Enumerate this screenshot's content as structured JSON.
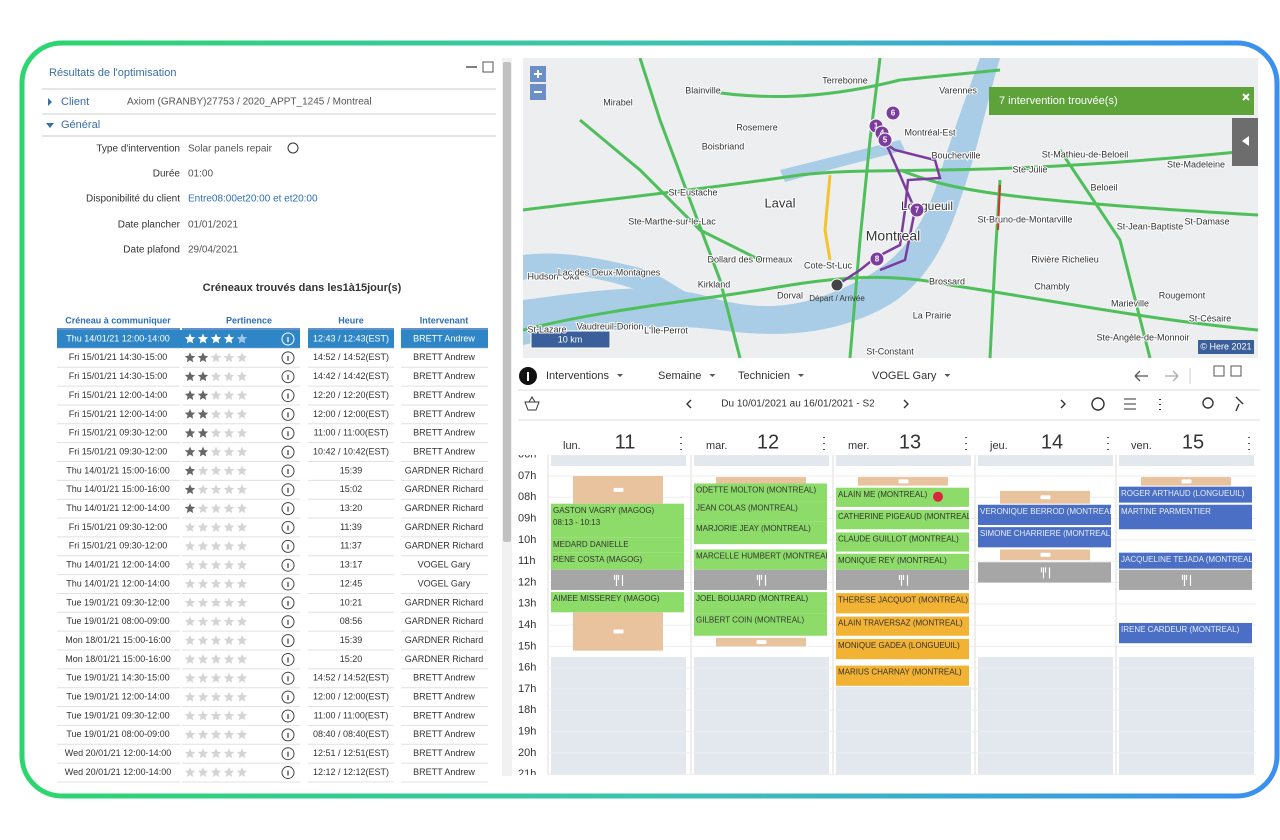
{
  "panel": {
    "title": "Résultats de l'optimisation",
    "client": {
      "label": "Client",
      "value": "Axiom (GRANBY)27753 / 2020_APPT_1245 / Montreal"
    },
    "general": {
      "label": "Général",
      "fields": [
        {
          "label": "Type d'intervention",
          "value": "Solar panels repair"
        },
        {
          "label": "Durée",
          "value": "01:00"
        },
        {
          "label": "Disponibilité du client",
          "value": "Entre08:00et20:00  et  et20:00"
        },
        {
          "label": "Date plancher",
          "value": "01/01/2021"
        },
        {
          "label": "Date plafond",
          "value": "29/04/2021"
        }
      ]
    },
    "slots_title": "Créneaux trouvés dans les1à15jour(s)",
    "table": {
      "headers": [
        "Créneau à communiquer",
        "Pertinence",
        "Heure",
        "Intervenant"
      ],
      "rows": [
        {
          "slot": "Thu 14/01/21 12:00-14:00",
          "rating": 4,
          "hour": "12:43 / 12:43(EST)",
          "tech": "BRETT Andrew"
        },
        {
          "slot": "Fri 15/01/21 14:30-15:00",
          "rating": 2,
          "hour": "14:52 / 14:52(EST)",
          "tech": "BRETT Andrew"
        },
        {
          "slot": "Fri 15/01/21 14:30-15:00",
          "rating": 2,
          "hour": "14:42 / 14:42(EST)",
          "tech": "BRETT Andrew"
        },
        {
          "slot": "Fri 15/01/21 12:00-14:00",
          "rating": 2,
          "hour": "12:20 / 12:20(EST)",
          "tech": "BRETT Andrew"
        },
        {
          "slot": "Fri 15/01/21 12:00-14:00",
          "rating": 2,
          "hour": "12:00 / 12:00(EST)",
          "tech": "BRETT Andrew"
        },
        {
          "slot": "Fri 15/01/21 09:30-12:00",
          "rating": 2,
          "hour": "11:00 / 11:00(EST)",
          "tech": "BRETT Andrew"
        },
        {
          "slot": "Fri 15/01/21 09:30-12:00",
          "rating": 2,
          "hour": "10:42 / 10:42(EST)",
          "tech": "BRETT Andrew"
        },
        {
          "slot": "Thu 14/01/21 15:00-16:00",
          "rating": 1,
          "hour": "15:39",
          "tech": "GARDNER Richard"
        },
        {
          "slot": "Thu 14/01/21 15:00-16:00",
          "rating": 1,
          "hour": "15:02",
          "tech": "GARDNER Richard"
        },
        {
          "slot": "Thu 14/01/21 12:00-14:00",
          "rating": 1,
          "hour": "13:20",
          "tech": "GARDNER Richard"
        },
        {
          "slot": "Fri 15/01/21 09:30-12:00",
          "rating": 0,
          "hour": "11:39",
          "tech": "GARDNER Richard"
        },
        {
          "slot": "Fri 15/01/21 09:30-12:00",
          "rating": 0,
          "hour": "11:37",
          "tech": "GARDNER Richard"
        },
        {
          "slot": "Thu 14/01/21 12:00-14:00",
          "rating": 0,
          "hour": "13:17",
          "tech": "VOGEL Gary"
        },
        {
          "slot": "Thu 14/01/21 12:00-14:00",
          "rating": 0,
          "hour": "12:45",
          "tech": "VOGEL Gary"
        },
        {
          "slot": "Tue 19/01/21 09:30-12:00",
          "rating": 0,
          "hour": "10:21",
          "tech": "GARDNER Richard"
        },
        {
          "slot": "Tue 19/01/21 08:00-09:00",
          "rating": 0,
          "hour": "08:56",
          "tech": "GARDNER Richard"
        },
        {
          "slot": "Mon 18/01/21 15:00-16:00",
          "rating": 0,
          "hour": "15:39",
          "tech": "GARDNER Richard"
        },
        {
          "slot": "Mon 18/01/21 15:00-16:00",
          "rating": 0,
          "hour": "15:20",
          "tech": "GARDNER Richard"
        },
        {
          "slot": "Tue 19/01/21 14:30-15:00",
          "rating": 0,
          "hour": "14:52 / 14:52(EST)",
          "tech": "BRETT Andrew"
        },
        {
          "slot": "Tue 19/01/21 12:00-14:00",
          "rating": 0,
          "hour": "12:00 / 12:00(EST)",
          "tech": "BRETT Andrew"
        },
        {
          "slot": "Tue 19/01/21 09:30-12:00",
          "rating": 0,
          "hour": "11:00 / 11:00(EST)",
          "tech": "BRETT Andrew"
        },
        {
          "slot": "Tue 19/01/21 08:00-09:00",
          "rating": 0,
          "hour": "08:40 / 08:40(EST)",
          "tech": "BRETT Andrew"
        },
        {
          "slot": "Wed 20/01/21 12:00-14:00",
          "rating": 0,
          "hour": "12:51 / 12:51(EST)",
          "tech": "BRETT Andrew"
        },
        {
          "slot": "Wed 20/01/21 12:00-14:00",
          "rating": 0,
          "hour": "12:12 / 12:12(EST)",
          "tech": "BRETT Andrew"
        }
      ]
    }
  },
  "map": {
    "badge": "7 intervention trouvée(s)",
    "scale": "10 km",
    "credit": "© Here 2021",
    "start_label": "Départ / Arrivée",
    "markers": [
      "1",
      "4",
      "6",
      "5",
      "7",
      "8"
    ],
    "places": [
      "Mirabel",
      "Terrebonne",
      "Blainville",
      "Varennes",
      "Rosemere",
      "Boisbriand",
      "Montréal-Est",
      "Boucherville",
      "Ste-Julie",
      "St-Mathieu-de-Beloeil",
      "Ste-Madeleine",
      "Beloeil",
      "St-Eustache",
      "Laval",
      "Ste-Marthe-sur-le-Lac",
      "Longueuil",
      "Montreal",
      "St-Bruno-de-Montarville",
      "St-Jean-Baptiste",
      "St-Damase",
      "Dollard des Ormeaux",
      "Kirkland",
      "Cote-St-Luc",
      "Hudson",
      "Oka",
      "Lac des Deux-Montagnes",
      "Dorval",
      "Brossard",
      "Chambly",
      "Rivière Richelieu",
      "Marieville",
      "Rougemont",
      "St-Lazare",
      "Vaudreuil-Dorion",
      "L'Île-Perrot",
      "La Prairie",
      "St-Césaire",
      "Ste-Angèle-de-Monnoir",
      "St-Constant"
    ]
  },
  "calendar": {
    "toolbar": [
      "Interventions",
      "Semaine",
      "Technicien",
      "VOGEL Gary"
    ],
    "range": "Du 10/01/2021 au 16/01/2021 - S2",
    "days": [
      {
        "name": "lun.",
        "num": 11
      },
      {
        "name": "mar.",
        "num": 12
      },
      {
        "name": "mer.",
        "num": 13
      },
      {
        "name": "jeu.",
        "num": 14
      },
      {
        "name": "ven.",
        "num": 15
      }
    ],
    "hours": [
      {
        "value": 6,
        "label": "06h"
      },
      {
        "value": 7,
        "label": "07h"
      },
      {
        "value": 8,
        "label": "08h"
      },
      {
        "value": 9,
        "label": "09h"
      },
      {
        "value": 10,
        "label": "10h"
      },
      {
        "value": 11,
        "label": "11h"
      },
      {
        "value": 12,
        "label": "12h"
      },
      {
        "value": 13,
        "label": "13h"
      },
      {
        "value": 14,
        "label": "14h"
      },
      {
        "value": 15,
        "label": "15h"
      },
      {
        "value": 16,
        "label": "16h"
      },
      {
        "value": 17,
        "label": "17h"
      },
      {
        "value": 18,
        "label": "18h"
      },
      {
        "value": 19,
        "label": "19h"
      },
      {
        "value": 20,
        "label": "20h"
      },
      {
        "value": 21,
        "label": "21h"
      }
    ],
    "events": [
      {
        "day": 0,
        "start": 7.0,
        "end": 8.3,
        "color": "#e8c39e"
      },
      {
        "day": 0,
        "start": 8.3,
        "end": 9.9,
        "color": "#8ddc6a",
        "title": "GASTON VAGRY (MAGOG)",
        "sub": "08:13 - 10:13"
      },
      {
        "day": 0,
        "start": 9.9,
        "end": 10.6,
        "color": "#8ddc6a",
        "title": "MEDARD DANIELLE"
      },
      {
        "day": 0,
        "start": 10.6,
        "end": 11.4,
        "color": "#8ddc6a",
        "title": "RENE COSTA (MAGOG)"
      },
      {
        "day": 0,
        "start": 11.4,
        "end": 12.35,
        "color": "#a6a6a6"
      },
      {
        "day": 0,
        "start": 12.45,
        "end": 13.4,
        "color": "#8ddc6a",
        "title": "AIMEE MISSEREY (MAGOG)"
      },
      {
        "day": 0,
        "start": 13.4,
        "end": 15.2,
        "color": "#e8c39e"
      },
      {
        "day": 1,
        "start": 7.05,
        "end": 7.35,
        "color": "#e8c39e"
      },
      {
        "day": 1,
        "start": 7.35,
        "end": 8.2,
        "color": "#8ddc6a",
        "title": "ODETTE MOLTON (MONTREAL)"
      },
      {
        "day": 1,
        "start": 8.2,
        "end": 9.15,
        "color": "#8ddc6a",
        "title": "JEAN COLAS (MONTREAL)"
      },
      {
        "day": 1,
        "start": 9.15,
        "end": 10.2,
        "color": "#8ddc6a",
        "title": "MARJORIE JEAY (MONTREAL)"
      },
      {
        "day": 1,
        "start": 10.45,
        "end": 11.4,
        "color": "#8ddc6a",
        "title": "MARCELLE HUMBERT (MONTREAL)"
      },
      {
        "day": 1,
        "start": 11.4,
        "end": 12.35,
        "color": "#a6a6a6"
      },
      {
        "day": 1,
        "start": 12.45,
        "end": 13.45,
        "color": "#8ddc6a",
        "title": "JOEL BOUJARD (MONTREAL)"
      },
      {
        "day": 1,
        "start": 13.45,
        "end": 14.5,
        "color": "#8ddc6a",
        "title": "GILBERT COIN (MONTREAL)"
      },
      {
        "day": 1,
        "start": 14.6,
        "end": 15.0,
        "color": "#e8c39e"
      },
      {
        "day": 2,
        "start": 7.05,
        "end": 7.45,
        "color": "#e8c39e"
      },
      {
        "day": 2,
        "start": 7.55,
        "end": 8.45,
        "color": "#8ddc6a",
        "title": "ALAIN ME (MONTREAL)"
      },
      {
        "day": 2,
        "start": 8.6,
        "end": 9.5,
        "color": "#8ddc6a",
        "title": "CATHERINE PIGEAUD (MONTREAL)"
      },
      {
        "day": 2,
        "start": 9.65,
        "end": 10.55,
        "color": "#8ddc6a",
        "title": "CLAUDE GUILLOT (MONTREAL)"
      },
      {
        "day": 2,
        "start": 10.65,
        "end": 11.4,
        "color": "#8ddc6a",
        "title": "MONIQUE REY (MONTREAL)"
      },
      {
        "day": 2,
        "start": 11.4,
        "end": 12.35,
        "color": "#a6a6a6"
      },
      {
        "day": 2,
        "start": 12.5,
        "end": 13.45,
        "color": "#f2b233",
        "title": "THERESE JACQUOT (MONTREAL)"
      },
      {
        "day": 2,
        "start": 13.6,
        "end": 14.5,
        "color": "#f2b233",
        "title": "ALAIN TRAVERSAZ (MONTREAL)"
      },
      {
        "day": 2,
        "start": 14.65,
        "end": 15.6,
        "color": "#f2b233",
        "title": "MONIQUE GADEA (LONGUEUIL)"
      },
      {
        "day": 2,
        "start": 15.9,
        "end": 16.85,
        "color": "#f2b233",
        "title": "MARIUS CHARNAY (MONTREAL)"
      },
      {
        "day": 3,
        "start": 7.7,
        "end": 8.3,
        "color": "#e8c39e"
      },
      {
        "day": 3,
        "start": 8.35,
        "end": 9.3,
        "color": "#4a6fc4",
        "title": "VERONIQUE BERROD (MONTREAL)"
      },
      {
        "day": 3,
        "start": 9.4,
        "end": 10.35,
        "color": "#4a6fc4",
        "title": "SIMONE CHARRIERE (MONTREAL)"
      },
      {
        "day": 3,
        "start": 10.45,
        "end": 10.95,
        "color": "#e8c39e"
      },
      {
        "day": 3,
        "start": 11.05,
        "end": 12.0,
        "color": "#a6a6a6"
      },
      {
        "day": 4,
        "start": 7.05,
        "end": 7.45,
        "color": "#e8c39e"
      },
      {
        "day": 4,
        "start": 7.5,
        "end": 8.25,
        "color": "#4a6fc4",
        "title": "ROGER ARTHAUD (LONGUEUIL)"
      },
      {
        "day": 4,
        "start": 8.35,
        "end": 9.5,
        "color": "#4a6fc4",
        "title": "MARTINE PARMENTIER"
      },
      {
        "day": 4,
        "start": 10.6,
        "end": 11.35,
        "color": "#4a6fc4",
        "title": "JACQUELINE TEJADA (MONTREAL)"
      },
      {
        "day": 4,
        "start": 11.4,
        "end": 12.35,
        "color": "#a6a6a6"
      },
      {
        "day": 4,
        "start": 13.9,
        "end": 14.85,
        "color": "#4a6fc4",
        "title": "IRENE CARDEUR (MONTREAL)"
      }
    ]
  }
}
